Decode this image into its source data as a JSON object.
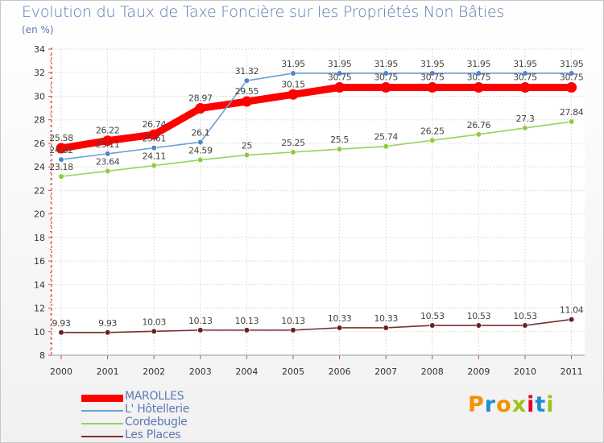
{
  "header": {
    "title": "Evolution du Taux de Taxe Foncière sur les Propriétés Non Bâties",
    "subtitle": "(en %)"
  },
  "logo": {
    "text": "Proxiti",
    "colors": [
      "#f39200",
      "#1d8fd1",
      "#f39200",
      "#9ac31c",
      "#e2002a",
      "#1d8fd1",
      "#9ac31c"
    ]
  },
  "chart_data": {
    "type": "line",
    "title": "Evolution du Taux de Taxe Foncière sur les Propriétés Non Bâties",
    "ylabel": "(en %)",
    "xlabel": "",
    "ylim": [
      8,
      34
    ],
    "yticks": [
      8,
      10,
      12,
      14,
      16,
      18,
      20,
      22,
      24,
      26,
      28,
      30,
      32,
      34
    ],
    "categories": [
      "2000",
      "2001",
      "2002",
      "2003",
      "2004",
      "2005",
      "2006",
      "2007",
      "2008",
      "2009",
      "2010",
      "2011"
    ],
    "grid": true,
    "legend": "bottom-left",
    "series": [
      {
        "name": "MAROLLES",
        "color": "#ff0000",
        "values": [
          25.58,
          26.22,
          26.74,
          28.97,
          29.55,
          30.15,
          30.75,
          30.75,
          30.75,
          30.75,
          30.75,
          30.75
        ],
        "labels": [
          "25.58",
          "26.22",
          "26.74",
          "28.97",
          "29.55",
          "30.15",
          "30.75",
          "30.75",
          "30.75",
          "30.75",
          "30.75",
          "30.75"
        ]
      },
      {
        "name": "L' Hôtellerie",
        "color": "#6a9fd4",
        "values": [
          24.62,
          25.11,
          25.61,
          26.1,
          31.32,
          31.95,
          31.95,
          31.95,
          31.95,
          31.95,
          31.95,
          31.95
        ],
        "labels": [
          "24.62",
          "25.11",
          "25.61",
          "26.1",
          "31.32",
          "31.95",
          "31.95",
          "31.95",
          "31.95",
          "31.95",
          "31.95",
          "31.95"
        ]
      },
      {
        "name": "Cordebugle",
        "color": "#99d25a",
        "values": [
          23.18,
          23.64,
          24.11,
          24.59,
          25,
          25.25,
          25.5,
          25.74,
          26.25,
          26.76,
          27.3,
          27.84
        ],
        "labels": [
          "23.18",
          "23.64",
          "24.11",
          "24.59",
          "25",
          "25.25",
          "25.5",
          "25.74",
          "26.25",
          "26.76",
          "27.3",
          "27.84"
        ]
      },
      {
        "name": "Les Places",
        "color": "#7a2e2e",
        "values": [
          9.93,
          9.93,
          10.03,
          10.13,
          10.13,
          10.13,
          10.33,
          10.33,
          10.53,
          10.53,
          10.53,
          11.04
        ],
        "labels": [
          "9.93",
          "9.93",
          "10.03",
          "10.13",
          "10.13",
          "10.13",
          "10.33",
          "10.33",
          "10.53",
          "10.53",
          "10.53",
          "11.04"
        ]
      }
    ]
  }
}
